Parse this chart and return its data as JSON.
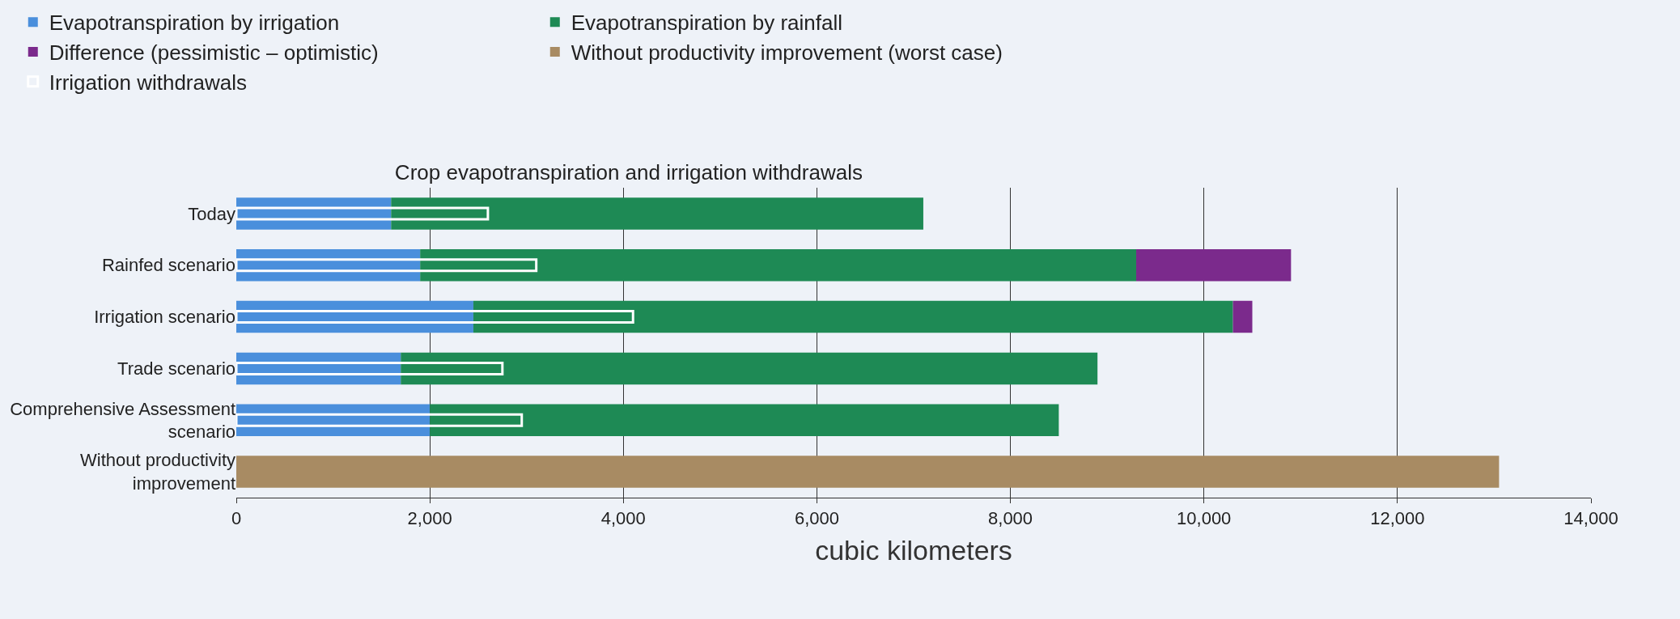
{
  "chart_data": [
    {
      "type": "bar",
      "orientation": "horizontal",
      "stacked": true,
      "title": "Crop evapotranspiration and irrigation withdrawals",
      "xlabel": "cubic kilometers",
      "categories": [
        "Today",
        "Rainfed scenario",
        "Irrigation scenario",
        "Trade scenario",
        "Comprehensive Assessment scenario",
        "Without productivity improvement"
      ],
      "series": [
        {
          "name": "Evapotranspiration by irrigation",
          "color": "#4a8fdc",
          "values": [
            1600,
            1900,
            2450,
            1700,
            2000,
            null
          ]
        },
        {
          "name": "Evapotranspiration by rainfall",
          "color": "#1e8a55",
          "values": [
            5500,
            7400,
            7850,
            7200,
            6500,
            null
          ]
        },
        {
          "name": "Difference (pessimistic – optimistic)",
          "color": "#7b2a8c",
          "values": [
            null,
            1600,
            200,
            null,
            null,
            null
          ]
        },
        {
          "name": "Without productivity improvement (worst case)",
          "color": "#a88b63",
          "values": [
            null,
            null,
            null,
            null,
            null,
            13050
          ]
        }
      ],
      "xlim": [
        0,
        14000
      ],
      "xticks": [
        0,
        {
          "value": 2000,
          "label": "2,000"
        },
        {
          "value": 4000,
          "label": "4,000"
        },
        {
          "value": 6000,
          "label": "6,000"
        },
        {
          "value": 8000,
          "label": "8,000"
        },
        {
          "value": 10000,
          "label": "10,000"
        },
        {
          "value": 12000,
          "label": "12,000"
        },
        {
          "value": 14000,
          "label": "14,000"
        }
      ],
      "grid": "x",
      "legend": "top"
    },
    {
      "type": "bar",
      "orientation": "horizontal",
      "categories": [
        null,
        null,
        null,
        null,
        null,
        null
      ],
      "series": [
        {
          "name": "Irrigation withdrawals",
          "color": "#ffffff",
          "values": [
            2600,
            3100,
            4100,
            2750,
            2950,
            null
          ]
        }
      ],
      "xlim": [
        0,
        14000
      ],
      "legend": "top"
    }
  ]
}
